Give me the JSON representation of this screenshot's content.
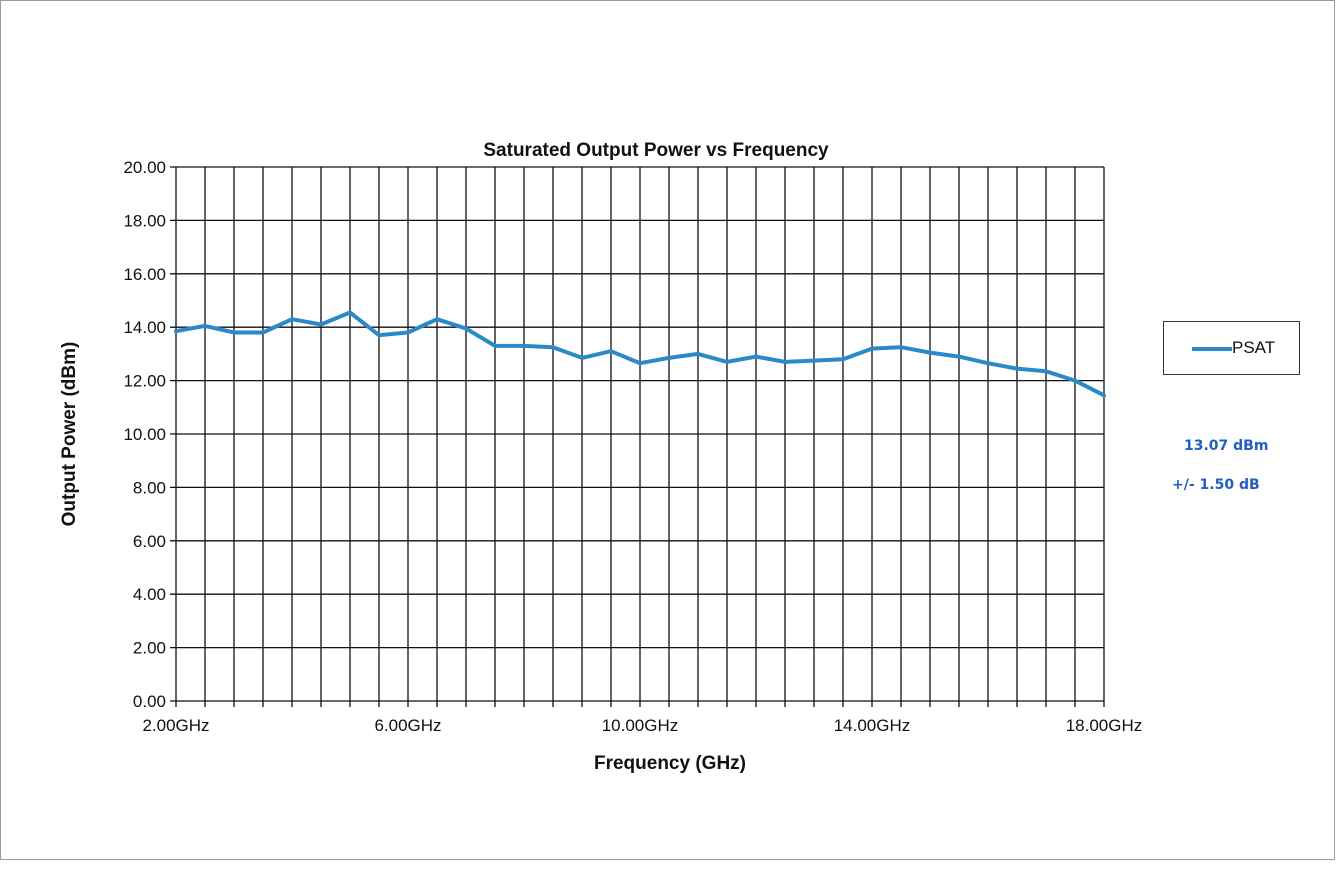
{
  "chart_data": {
    "type": "line",
    "title": "Saturated Output Power vs Frequency",
    "xlabel": "Frequency (GHz)",
    "ylabel": "Output Power (dBm)",
    "xlim": [
      2,
      18
    ],
    "ylim": [
      0,
      20
    ],
    "y_ticks": [
      "0.00",
      "2.00",
      "4.00",
      "6.00",
      "8.00",
      "10.00",
      "12.00",
      "14.00",
      "16.00",
      "18.00",
      "20.00"
    ],
    "x_tick_labels": [
      {
        "value": 2,
        "label": "2.00GHz"
      },
      {
        "value": 6,
        "label": "6.00GHz"
      },
      {
        "value": 10,
        "label": "10.00GHz"
      },
      {
        "value": 14,
        "label": "14.00GHz"
      },
      {
        "value": 18,
        "label": "18.00GHz"
      }
    ],
    "x_gridlines": [
      2,
      2.5,
      3,
      3.5,
      4,
      4.5,
      5,
      5.5,
      6,
      6.5,
      7,
      7.5,
      8,
      8.5,
      9,
      9.5,
      10,
      10.5,
      11,
      11.5,
      12,
      12.5,
      13,
      13.5,
      14,
      14.5,
      15,
      15.5,
      16,
      16.5,
      17,
      17.5,
      18
    ],
    "grid": true,
    "legend_position": "right",
    "series": [
      {
        "name": "PSAT",
        "color": "#2a8ac8",
        "x": [
          2,
          2.5,
          3,
          3.5,
          4,
          4.5,
          5,
          5.5,
          6,
          6.5,
          7,
          7.5,
          8,
          8.5,
          9,
          9.5,
          10,
          10.5,
          11,
          11.5,
          12,
          12.5,
          13,
          13.5,
          14,
          14.5,
          15,
          15.5,
          16,
          16.5,
          17,
          17.5,
          18
        ],
        "y": [
          13.85,
          14.05,
          13.8,
          13.8,
          14.3,
          14.1,
          14.55,
          13.7,
          13.8,
          14.3,
          13.95,
          13.3,
          13.3,
          13.25,
          12.85,
          13.1,
          12.65,
          12.85,
          13.0,
          12.7,
          12.9,
          12.7,
          12.75,
          12.8,
          13.2,
          13.25,
          13.05,
          12.9,
          12.65,
          12.45,
          12.35,
          12.0,
          11.45
        ]
      }
    ]
  },
  "legend": {
    "label": "PSAT"
  },
  "annotations": {
    "value": "13.07 dBm",
    "tolerance": "+/- 1.50 dB"
  }
}
